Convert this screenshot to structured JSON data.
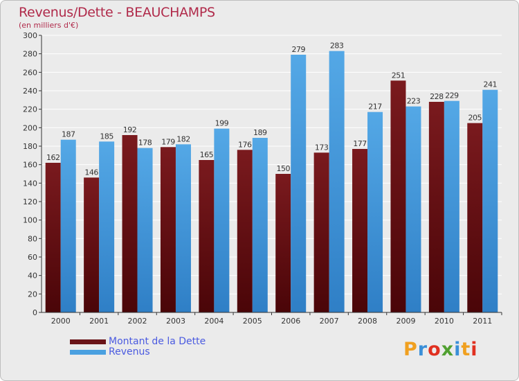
{
  "header": {
    "title": "Revenus/Dette - BEAUCHAMPS",
    "subtitle": "(en milliers d'€)"
  },
  "logo": {
    "text": "Proxiti",
    "letters": [
      "P",
      "r",
      "o",
      "x",
      "i",
      "t",
      "i"
    ],
    "colors": [
      "#f0a020",
      "#3a8fd8",
      "#e03020",
      "#50a030",
      "#3a8fd8",
      "#f0a020",
      "#e03020"
    ]
  },
  "chart_data": {
    "type": "bar",
    "title": "Revenus/Dette - BEAUCHAMPS",
    "subtitle": "(en milliers d'€)",
    "categories": [
      "2000",
      "2001",
      "2002",
      "2003",
      "2004",
      "2005",
      "2006",
      "2007",
      "2008",
      "2009",
      "2010",
      "2011"
    ],
    "series": [
      {
        "name": "Montant de la Dette",
        "values": [
          162,
          146,
          192,
          179,
          165,
          176,
          150,
          173,
          177,
          251,
          228,
          205
        ],
        "color": "#7a1a1e",
        "color_dark": "#4a0508"
      },
      {
        "name": "Revenus",
        "values": [
          187,
          185,
          178,
          182,
          199,
          189,
          279,
          283,
          217,
          223,
          229,
          241
        ],
        "color": "#54a8e6",
        "color_dark": "#2f7fc6"
      }
    ],
    "ylim": [
      0,
      300
    ],
    "ytick_step": 20,
    "yticks": [
      "0",
      "20",
      "40",
      "60",
      "80",
      "100",
      "120",
      "140",
      "160",
      "180",
      "200",
      "220",
      "240",
      "260",
      "280",
      "300"
    ],
    "grid": true,
    "legend": "bottom-left"
  }
}
